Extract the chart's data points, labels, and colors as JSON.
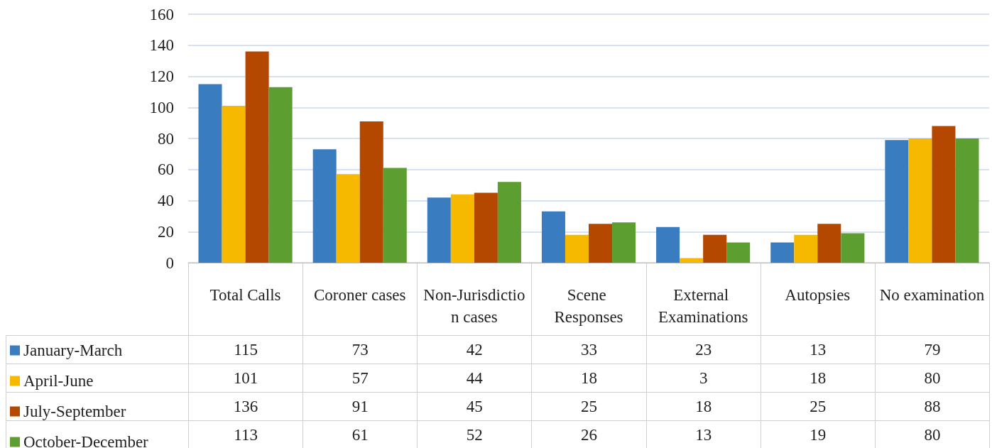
{
  "chart_data": {
    "type": "bar",
    "categories": [
      "Total Calls",
      "Coroner cases",
      "Non-Jurisdiction cases",
      "Scene Responses",
      "External Examinations",
      "Autopsies",
      "No examination"
    ],
    "series": [
      {
        "name": "January-March",
        "color": "#3a7cc0",
        "values": [
          115,
          73,
          42,
          33,
          23,
          13,
          79
        ]
      },
      {
        "name": "April-June",
        "color": "#f6b900",
        "values": [
          101,
          57,
          44,
          18,
          3,
          18,
          80
        ]
      },
      {
        "name": "July-September",
        "color": "#b44800",
        "values": [
          136,
          91,
          45,
          25,
          18,
          25,
          88
        ]
      },
      {
        "name": "October-December",
        "color": "#5c9e30",
        "values": [
          113,
          61,
          52,
          26,
          13,
          19,
          80
        ]
      }
    ],
    "ylim": [
      0,
      160
    ],
    "yticks": [
      0,
      20,
      40,
      60,
      80,
      100,
      120,
      140,
      160
    ],
    "grid": true,
    "legend": "bottom left",
    "data_labels": true
  }
}
